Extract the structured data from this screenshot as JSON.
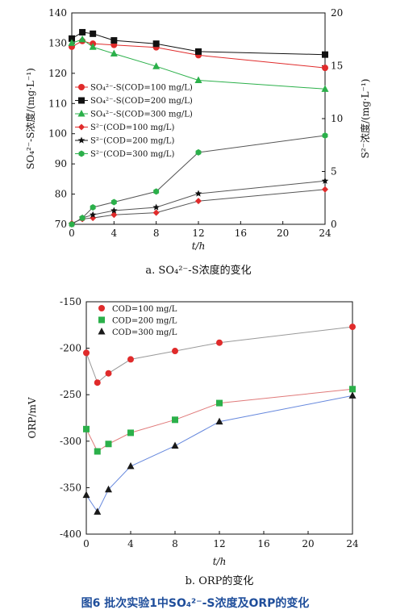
{
  "caption": "图6 批次实验1中SO₄²⁻-S浓度及ORP的变化",
  "chart_data": [
    {
      "type": "line",
      "subcaption": "a. SO₄²⁻-S浓度的变化",
      "xlabel": "t/h",
      "ylabel_left": "SO₄²⁻-S浓度/(mg·L⁻¹)",
      "ylabel_right": "S²⁻浓度/(mg·L⁻¹)",
      "xlim": [
        0,
        24
      ],
      "xticks": [
        0,
        4,
        8,
        12,
        16,
        20,
        24
      ],
      "ylim_left": [
        70,
        140
      ],
      "yticks_left": [
        70,
        80,
        90,
        100,
        110,
        120,
        130,
        140
      ],
      "ylim_right": [
        0,
        20
      ],
      "yticks_right": [
        0,
        5,
        10,
        15,
        20
      ],
      "legend_position": "left-middle",
      "series": [
        {
          "name": "SO₄²⁻-S(COD=100 mg/L)",
          "axis": "left",
          "marker": "circle",
          "color": "#e02b2b",
          "x": [
            0,
            1,
            2,
            4,
            8,
            12,
            24
          ],
          "y": [
            128.8,
            130.7,
            129.8,
            129.4,
            128.6,
            126.0,
            121.8
          ]
        },
        {
          "name": "SO₄²⁻-S(COD=200 mg/L)",
          "axis": "left",
          "marker": "square",
          "color": "#111111",
          "x": [
            0,
            1,
            2,
            4,
            8,
            12,
            24
          ],
          "y": [
            131.5,
            133.6,
            133.1,
            130.9,
            129.8,
            127.2,
            126.2
          ]
        },
        {
          "name": "SO₄²⁻-S(COD=300 mg/L)",
          "axis": "left",
          "marker": "triangle",
          "color": "#2bb04a",
          "x": [
            0,
            1,
            2,
            4,
            8,
            12,
            24
          ],
          "y": [
            130.0,
            131.2,
            128.7,
            126.5,
            122.3,
            117.7,
            114.8
          ]
        },
        {
          "name": "S²⁻(COD=100 mg/L)",
          "axis": "right",
          "marker": "diamond",
          "color": "#e02b2b",
          "x": [
            0,
            1,
            2,
            4,
            8,
            12,
            24
          ],
          "y": [
            0.1,
            0.5,
            0.6,
            0.9,
            1.1,
            2.2,
            3.3
          ]
        },
        {
          "name": "S²⁻(COD=200 mg/L)",
          "axis": "right",
          "marker": "star",
          "color": "#111111",
          "x": [
            0,
            1,
            2,
            4,
            8,
            12,
            24
          ],
          "y": [
            0.0,
            0.6,
            0.9,
            1.3,
            1.6,
            2.9,
            4.1
          ]
        },
        {
          "name": "S²⁻(COD=300 mg/L)",
          "axis": "right",
          "marker": "hexagon",
          "color": "#2bb04a",
          "x": [
            0,
            1,
            2,
            4,
            8,
            12,
            24
          ],
          "y": [
            0.0,
            0.6,
            1.6,
            2.1,
            3.1,
            6.8,
            8.4
          ]
        }
      ]
    },
    {
      "type": "line",
      "subcaption": "b. ORP的变化",
      "xlabel": "t/h",
      "ylabel": "ORP/mV",
      "xlim": [
        0,
        24
      ],
      "xticks": [
        0,
        4,
        8,
        12,
        16,
        20,
        24
      ],
      "ylim": [
        -400,
        -150
      ],
      "yticks": [
        -400,
        -350,
        -300,
        -250,
        -200,
        -150
      ],
      "legend_position": "top-left",
      "series": [
        {
          "name": "COD=100 mg/L",
          "marker": "circle",
          "color": "#e02b2b",
          "x": [
            0,
            1,
            2,
            4,
            8,
            12,
            24
          ],
          "y": [
            -205,
            -237,
            -227,
            -212,
            -203,
            -194,
            -177
          ]
        },
        {
          "name": "COD=200 mg/L",
          "marker": "square",
          "color": "#2bb04a",
          "x": [
            0,
            1,
            2,
            4,
            8,
            12,
            24
          ],
          "y": [
            -287,
            -311,
            -303,
            -291,
            -277,
            -259,
            -244
          ]
        },
        {
          "name": "COD=300 mg/L",
          "marker": "triangle",
          "color": "#1a1a1a",
          "x": [
            0,
            1,
            2,
            4,
            8,
            12,
            24
          ],
          "y": [
            -358,
            -376,
            -352,
            -327,
            -305,
            -279,
            -251
          ]
        }
      ],
      "line_colors": [
        "#999999",
        "#e07a7a",
        "#6688dd"
      ]
    }
  ]
}
